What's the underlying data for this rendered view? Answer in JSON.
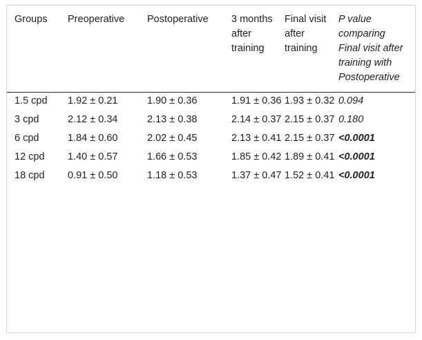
{
  "table": {
    "headers": [
      "Groups",
      "Preoperative",
      "Postoperative",
      "3 months after training",
      "Final visit after training",
      "P value comparing Final visit after training with Postoperative"
    ],
    "rows": [
      {
        "group": "1.5 cpd",
        "pre": "1.92 ± 0.21",
        "post": "1.90 ± 0.36",
        "m3": "1.91 ± 0.36",
        "final": "1.93 ± 0.32",
        "p": "0.094"
      },
      {
        "group": "3 cpd",
        "pre": "2.12 ± 0.34",
        "post": "2.13 ± 0.38",
        "m3": "2.14 ± 0.37",
        "final": "2.15 ± 0.37",
        "p": "0.180"
      },
      {
        "group": "6 cpd",
        "pre": "1.84 ± 0.60",
        "post": "2.02 ± 0.45",
        "m3": "2.13 ± 0.41",
        "final": "2.15 ± 0.37",
        "p": "<0.0001"
      },
      {
        "group": "12 cpd",
        "pre": "1.40 ± 0.57",
        "post": "1.66 ± 0.53",
        "m3": "1.85 ± 0.42",
        "final": "1.89 ± 0.41",
        "p": "<0.0001"
      },
      {
        "group": "18 cpd",
        "pre": "0.91 ± 0.50",
        "post": "1.18 ± 0.53",
        "m3": "1.37 ± 0.47",
        "final": "1.52 ± 0.41",
        "p": "<0.0001"
      }
    ]
  }
}
